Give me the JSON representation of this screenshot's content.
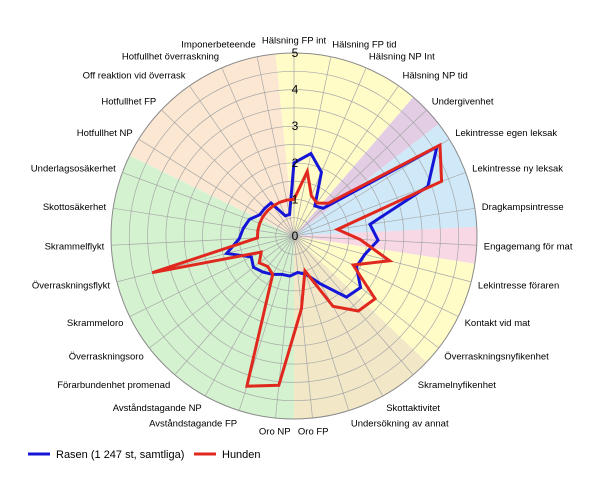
{
  "chart_data": {
    "type": "radar",
    "rmax": 5,
    "ticks": [
      "0",
      "1",
      "2",
      "3",
      "4",
      "5"
    ],
    "categories": [
      "Hälsning FP int",
      "Hälsning FP tid",
      "Hälsning NP Int",
      "Hälsning NP tid",
      "Undergivenhet",
      "Lekintresse egen leksak",
      "Lekintresse ny leksak",
      "Dragkampsintresse",
      "Engagemang för mat",
      "Lekintresse föraren",
      "Kontakt vid mat",
      "Överraskningsnyfikenhet",
      "Skramelnyfikenhet",
      "Skottaktivitet",
      "Undersökning av annat",
      "Oro FP",
      "Oro NP",
      "Avståndstagande FP",
      "Avståndstagande NP",
      "Förarbundenhet promenad",
      "Överraskningsoro",
      "Skrammeloro",
      "Överraskningsflykt",
      "Skrammelflykt",
      "Skottosäkerhet",
      "Underlagsosäkerhet",
      "Hotfullhet NP",
      "Hotfullhet FP",
      "Off reaktion vid överrask",
      "Hotfullhet överraskning",
      "Imponerbeteende"
    ],
    "sectors": [
      {
        "start": -0.5,
        "end": 3.5,
        "color": "#fffcc8"
      },
      {
        "start": 3.5,
        "end": 4.5,
        "color": "#e2cde4"
      },
      {
        "start": 4.5,
        "end": 7.5,
        "color": "#cfe9f8"
      },
      {
        "start": 7.5,
        "end": 8.5,
        "color": "#f9d8e6"
      },
      {
        "start": 8.5,
        "end": 11.5,
        "color": "#fffcc8"
      },
      {
        "start": 11.5,
        "end": 15.5,
        "color": "#f2e8c8"
      },
      {
        "start": 15.5,
        "end": 25.5,
        "color": "#d4f2d0"
      },
      {
        "start": 25.5,
        "end": 30.5,
        "color": "#fce8d2"
      }
    ],
    "series": [
      {
        "name": "Rasen (1 247 st, samtliga)",
        "color": "#1515d8",
        "values": [
          2.0,
          2.3,
          1.9,
          1.0,
          1.1,
          4.6,
          3.9,
          2.1,
          2.3,
          2.0,
          1.9,
          2.3,
          2.2,
          1.5,
          1.1,
          1.0,
          1.1,
          1.1,
          1.2,
          1.3,
          1.4,
          1.3,
          1.9,
          1.5,
          1.4,
          1.3,
          1.1,
          1.1,
          1.1,
          0.6,
          0.6
        ]
      },
      {
        "name": "Hunden",
        "color": "#e0281e",
        "values": [
          1.0,
          1.8,
          1.2,
          1.1,
          1.3,
          4.7,
          4.3,
          1.2,
          1.8,
          2.7,
          1.8,
          2.8,
          2.7,
          2.2,
          1.0,
          2.0,
          4.1,
          4.3,
          1.2,
          1.1,
          1.2,
          1.0,
          4.0,
          1.0,
          1.0,
          1.0,
          1.0,
          1.0,
          1.0,
          1.0,
          1.0
        ]
      }
    ]
  }
}
